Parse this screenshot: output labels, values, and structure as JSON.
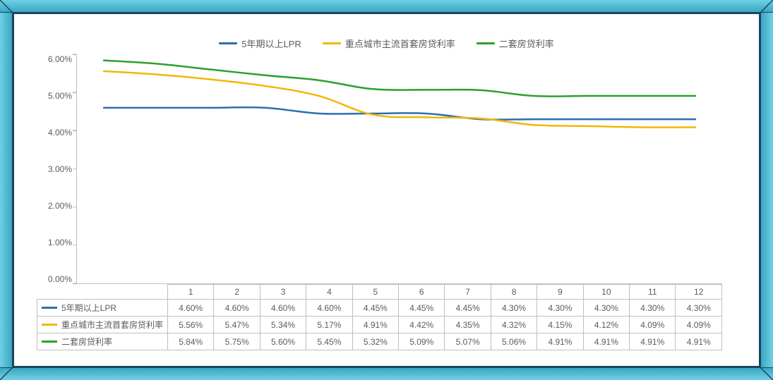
{
  "chart": {
    "type": "line",
    "background_color": "#ffffff",
    "frame": {
      "bevel_light": "#6fd0e5",
      "bevel_dark": "#3aa7c1",
      "border_color": "#1a4560"
    },
    "axis_color": "#bfbfbf",
    "text_color": "#5b5b5b",
    "font_size_labels": 12,
    "font_size_legend": 13,
    "line_width": 2.5,
    "ylim": [
      0.0,
      6.0
    ],
    "ytick_step": 1.0,
    "y_ticks": [
      "6.00%",
      "5.00%",
      "4.00%",
      "3.00%",
      "2.00%",
      "1.00%",
      "0.00%"
    ],
    "x_categories": [
      "1",
      "2",
      "3",
      "4",
      "5",
      "6",
      "7",
      "8",
      "9",
      "10",
      "11",
      "12"
    ],
    "legend_position": "top-center",
    "series": [
      {
        "key": "lpr5y",
        "label": "5年期以上LPR",
        "color": "#2f6db3",
        "values": [
          4.6,
          4.6,
          4.6,
          4.6,
          4.45,
          4.45,
          4.45,
          4.3,
          4.3,
          4.3,
          4.3,
          4.3
        ],
        "display": [
          "4.60%",
          "4.60%",
          "4.60%",
          "4.60%",
          "4.45%",
          "4.45%",
          "4.45%",
          "4.30%",
          "4.30%",
          "4.30%",
          "4.30%",
          "4.30%"
        ]
      },
      {
        "key": "first_home",
        "label": "重点城市主流首套房贷利率",
        "color": "#f2b705",
        "values": [
          5.56,
          5.47,
          5.34,
          5.17,
          4.91,
          4.42,
          4.35,
          4.32,
          4.15,
          4.12,
          4.09,
          4.09
        ],
        "display": [
          "5.56%",
          "5.47%",
          "5.34%",
          "5.17%",
          "4.91%",
          "4.42%",
          "4.35%",
          "4.32%",
          "4.15%",
          "4.12%",
          "4.09%",
          "4.09%"
        ]
      },
      {
        "key": "second_home",
        "label": "二套房贷利率",
        "color": "#2ca02c",
        "values": [
          5.84,
          5.75,
          5.6,
          5.45,
          5.32,
          5.09,
          5.07,
          5.06,
          4.91,
          4.91,
          4.91,
          4.91
        ],
        "display": [
          "5.84%",
          "5.75%",
          "5.60%",
          "5.45%",
          "5.32%",
          "5.09%",
          "5.07%",
          "5.06%",
          "4.91%",
          "4.91%",
          "4.91%",
          "4.91%"
        ]
      }
    ]
  }
}
